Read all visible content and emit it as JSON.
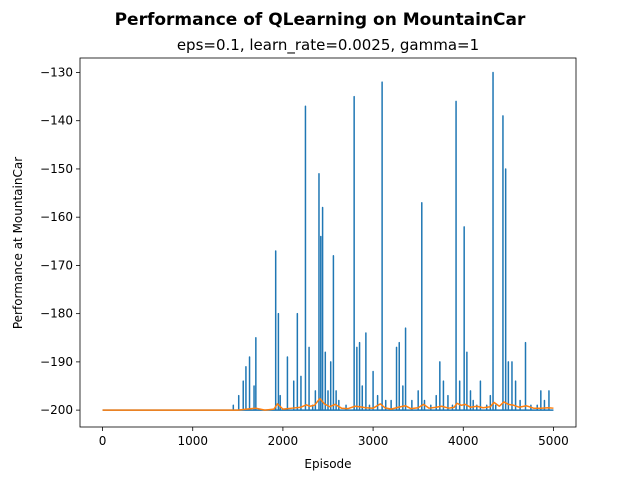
{
  "chart_data": {
    "type": "line",
    "title": "Performance of QLearning on MountainCar",
    "subtitle": "eps=0.1, learn_rate=0.0025, gamma=1",
    "xlabel": "Episode",
    "ylabel": "Performance at MountainCar",
    "xlim": [
      -250,
      5250
    ],
    "ylim": [
      -203.5,
      -127
    ],
    "xticks": [
      0,
      1000,
      2000,
      3000,
      4000,
      5000
    ],
    "xtick_labels": [
      "0",
      "1000",
      "2000",
      "3000",
      "4000",
      "5000"
    ],
    "yticks": [
      -200,
      -190,
      -180,
      -170,
      -160,
      -150,
      -140,
      -130
    ],
    "ytick_labels": [
      "−200",
      "−190",
      "−180",
      "−170",
      "−160",
      "−150",
      "−140",
      "−130"
    ],
    "grid": false,
    "baseline": -200,
    "series": [
      {
        "color": "#1f77b4",
        "x_range": [
          0,
          5000
        ],
        "spikes": [
          [
            1450,
            -199
          ],
          [
            1510,
            -197
          ],
          [
            1560,
            -194
          ],
          [
            1590,
            -191
          ],
          [
            1630,
            -189
          ],
          [
            1680,
            -195
          ],
          [
            1700,
            -185
          ],
          [
            1920,
            -167
          ],
          [
            1950,
            -180
          ],
          [
            1970,
            -197
          ],
          [
            2050,
            -189
          ],
          [
            2120,
            -194
          ],
          [
            2160,
            -180
          ],
          [
            2200,
            -193
          ],
          [
            2250,
            -137
          ],
          [
            2290,
            -187
          ],
          [
            2330,
            -199
          ],
          [
            2360,
            -196
          ],
          [
            2400,
            -151
          ],
          [
            2420,
            -164
          ],
          [
            2440,
            -158
          ],
          [
            2470,
            -188
          ],
          [
            2500,
            -196
          ],
          [
            2530,
            -190
          ],
          [
            2560,
            -168
          ],
          [
            2590,
            -196
          ],
          [
            2620,
            -198
          ],
          [
            2700,
            -199
          ],
          [
            2790,
            -135
          ],
          [
            2820,
            -187
          ],
          [
            2850,
            -186
          ],
          [
            2880,
            -195
          ],
          [
            2920,
            -184
          ],
          [
            2960,
            -199
          ],
          [
            3000,
            -192
          ],
          [
            3050,
            -197
          ],
          [
            3100,
            -132
          ],
          [
            3140,
            -198
          ],
          [
            3200,
            -198
          ],
          [
            3260,
            -187
          ],
          [
            3290,
            -186
          ],
          [
            3330,
            -195
          ],
          [
            3360,
            -183
          ],
          [
            3430,
            -198
          ],
          [
            3500,
            -196
          ],
          [
            3540,
            -157
          ],
          [
            3570,
            -198
          ],
          [
            3640,
            -199
          ],
          [
            3700,
            -197
          ],
          [
            3740,
            -190
          ],
          [
            3780,
            -194
          ],
          [
            3830,
            -197
          ],
          [
            3880,
            -199
          ],
          [
            3920,
            -136
          ],
          [
            3960,
            -194
          ],
          [
            4010,
            -162
          ],
          [
            4040,
            -188
          ],
          [
            4080,
            -196
          ],
          [
            4110,
            -198
          ],
          [
            4150,
            -199
          ],
          [
            4190,
            -194
          ],
          [
            4260,
            -199
          ],
          [
            4300,
            -197
          ],
          [
            4330,
            -130
          ],
          [
            4360,
            -199
          ],
          [
            4440,
            -139
          ],
          [
            4470,
            -150
          ],
          [
            4500,
            -190
          ],
          [
            4540,
            -190
          ],
          [
            4580,
            -194
          ],
          [
            4630,
            -198
          ],
          [
            4690,
            -186
          ],
          [
            4750,
            -199
          ],
          [
            4820,
            -199
          ],
          [
            4860,
            -196
          ],
          [
            4900,
            -198
          ],
          [
            4950,
            -196
          ]
        ]
      },
      {
        "color": "#ff7f0e",
        "x_range": [
          0,
          5000
        ],
        "points": [
          [
            0,
            -200
          ],
          [
            1500,
            -200
          ],
          [
            1600,
            -199.8
          ],
          [
            1700,
            -199.6
          ],
          [
            1800,
            -200
          ],
          [
            1900,
            -199.8
          ],
          [
            1940,
            -198.7
          ],
          [
            2000,
            -199.8
          ],
          [
            2100,
            -199.6
          ],
          [
            2200,
            -199.4
          ],
          [
            2260,
            -198.9
          ],
          [
            2300,
            -199.2
          ],
          [
            2350,
            -199
          ],
          [
            2410,
            -197.6
          ],
          [
            2460,
            -198.7
          ],
          [
            2520,
            -199.3
          ],
          [
            2580,
            -198.8
          ],
          [
            2650,
            -199.6
          ],
          [
            2720,
            -199.7
          ],
          [
            2800,
            -199.2
          ],
          [
            2850,
            -199.3
          ],
          [
            2920,
            -199.5
          ],
          [
            3000,
            -199.6
          ],
          [
            3080,
            -198.7
          ],
          [
            3130,
            -199.5
          ],
          [
            3200,
            -199.8
          ],
          [
            3280,
            -199.4
          ],
          [
            3360,
            -199.1
          ],
          [
            3420,
            -199.7
          ],
          [
            3500,
            -199.5
          ],
          [
            3560,
            -198.8
          ],
          [
            3620,
            -199.6
          ],
          [
            3700,
            -199.4
          ],
          [
            3760,
            -199.2
          ],
          [
            3840,
            -199.6
          ],
          [
            3900,
            -199.4
          ],
          [
            3930,
            -198.6
          ],
          [
            3980,
            -199
          ],
          [
            4020,
            -198.8
          ],
          [
            4080,
            -199.4
          ],
          [
            4150,
            -199.2
          ],
          [
            4220,
            -199.5
          ],
          [
            4300,
            -199.3
          ],
          [
            4340,
            -198.4
          ],
          [
            4400,
            -199.2
          ],
          [
            4450,
            -198.3
          ],
          [
            4500,
            -198.8
          ],
          [
            4560,
            -199
          ],
          [
            4620,
            -199.4
          ],
          [
            4700,
            -199.1
          ],
          [
            4780,
            -199.6
          ],
          [
            4860,
            -199.6
          ],
          [
            4940,
            -199.5
          ],
          [
            5000,
            -199.6
          ]
        ]
      }
    ]
  }
}
